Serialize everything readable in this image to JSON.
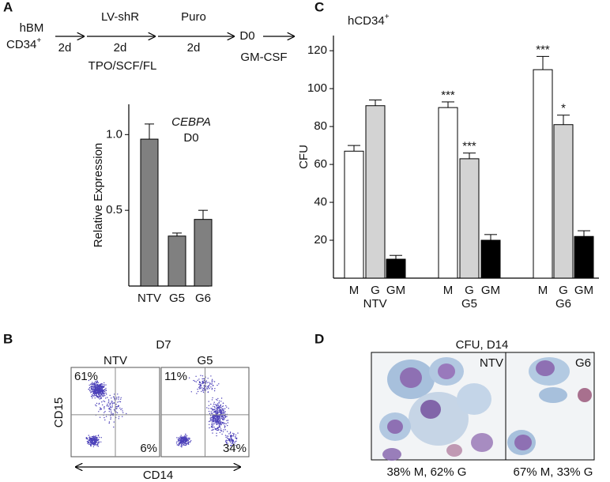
{
  "panels": {
    "a": "A",
    "b": "B",
    "c": "C",
    "d": "D"
  },
  "schematic": {
    "start": "hBM",
    "cells": "CD34",
    "cells_sup": "+",
    "step1_days": "2d",
    "step2": "LV-shR",
    "step2_days": "2d",
    "step2_cytokines": "TPO/SCF/FL",
    "step3": "Puro",
    "step3_days": "2d",
    "end": "D0",
    "end_condition": "GM-CSF"
  },
  "chart_data": [
    {
      "type": "bar",
      "ylabel": "Relative Expression",
      "annotation_gene": "CEBPA",
      "annotation_day": "D0",
      "categories": [
        "NTV",
        "G5",
        "G6"
      ],
      "values": [
        0.97,
        0.33,
        0.44
      ],
      "errors": [
        0.1,
        0.02,
        0.06
      ],
      "color": "#808080",
      "ylim": [
        0,
        1.2
      ],
      "yticks": [
        0.5,
        {
          "value": 1,
          "label": "1.0"
        }
      ]
    },
    {
      "type": "bar",
      "ylabel": "CFU",
      "annotation": "hCD34",
      "annotation_sup": "+",
      "categories": [
        "NTV",
        "G5",
        "G6"
      ],
      "series": [
        {
          "name": "M",
          "color": "#ffffff",
          "values": [
            67,
            90,
            110
          ],
          "errors": [
            3,
            3,
            7
          ],
          "marks": [
            null,
            "***",
            "***"
          ]
        },
        {
          "name": "G",
          "color": "#d3d3d3",
          "values": [
            91,
            63,
            81
          ],
          "errors": [
            3,
            3,
            5
          ],
          "marks": [
            null,
            "***",
            "*"
          ]
        },
        {
          "name": "GM",
          "color": "#000000",
          "values": [
            10,
            20,
            22
          ],
          "errors": [
            2,
            3,
            3
          ],
          "marks": [
            null,
            null,
            null
          ]
        }
      ],
      "ylim": [
        0,
        128
      ],
      "yticks": [
        20,
        40,
        60,
        80,
        100,
        120
      ]
    }
  ],
  "flow": {
    "day": "D7",
    "ylabel": "CD15",
    "xlabel": "CD14",
    "plots": [
      {
        "name": "NTV",
        "upper_left": "61%",
        "lower_right": "6%"
      },
      {
        "name": "G5",
        "upper_left": "11%",
        "lower_right": "34%"
      }
    ]
  },
  "micrograph": {
    "title": "CFU, D14",
    "images": [
      {
        "name": "NTV",
        "caption": "38% M, 62% G"
      },
      {
        "name": "G6",
        "caption": "67% M, 33% G"
      }
    ]
  }
}
